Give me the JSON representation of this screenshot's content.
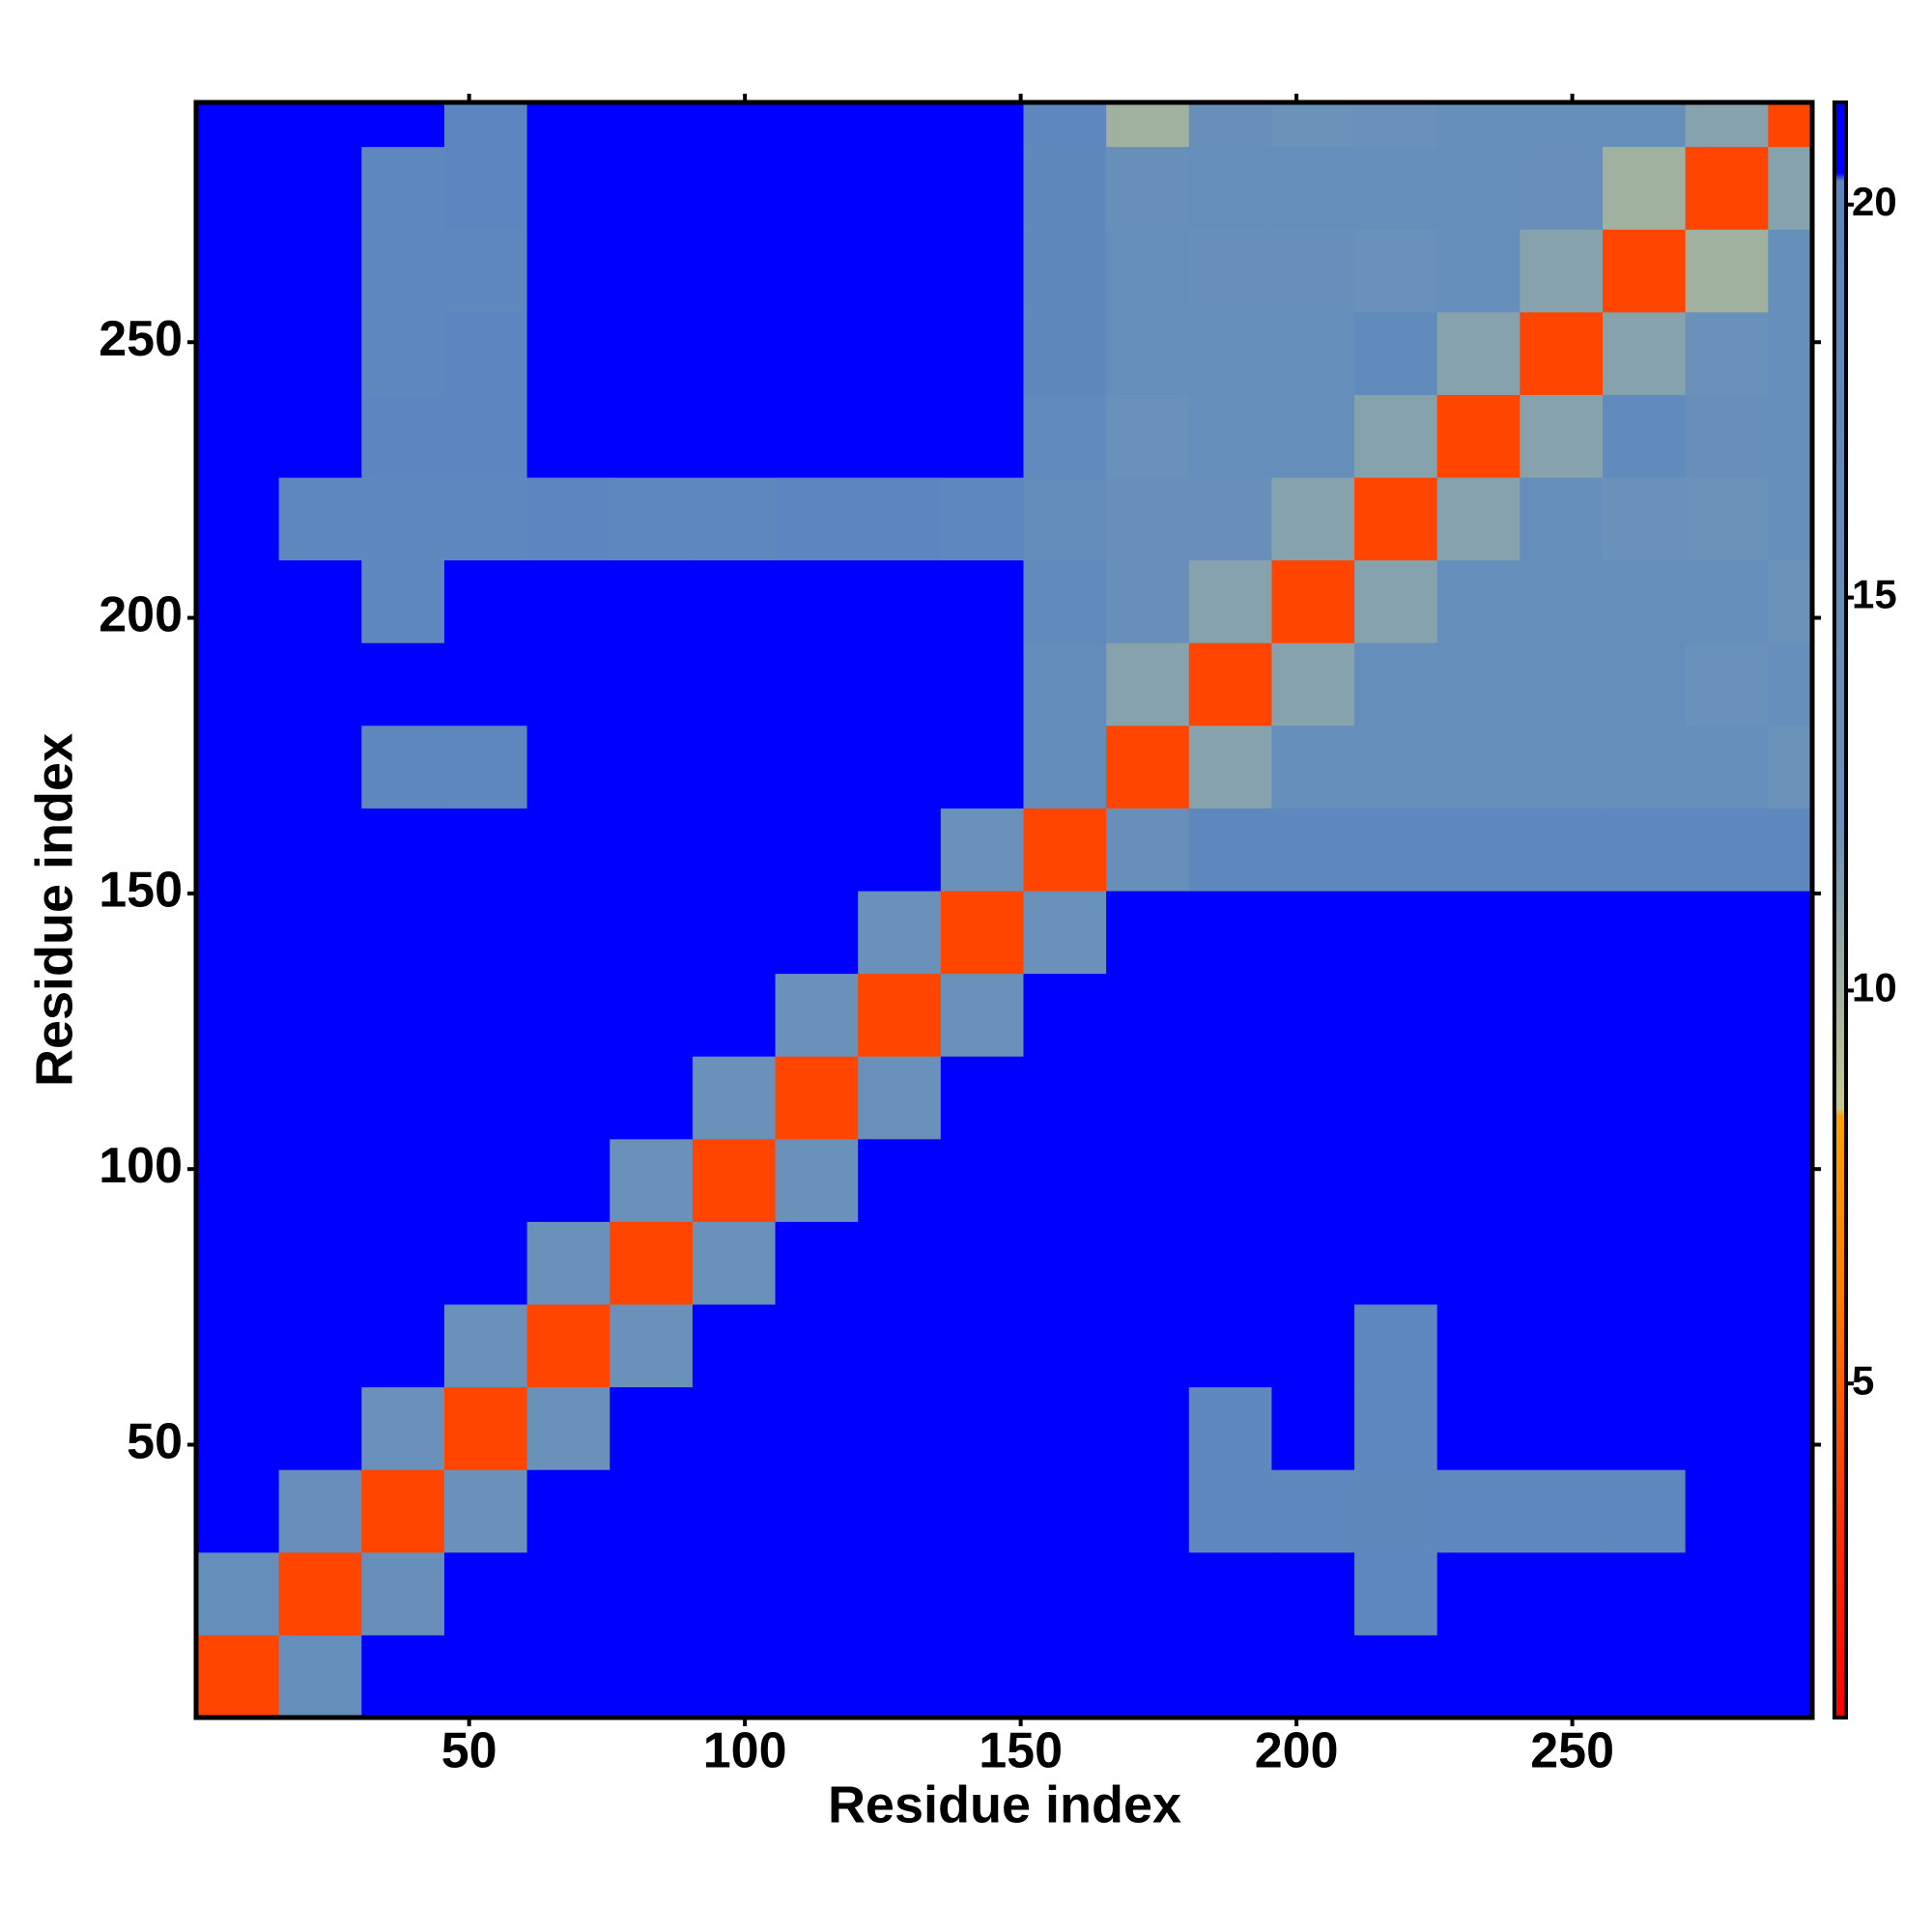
{
  "chart_data": {
    "type": "heatmap",
    "xlabel": "Residue index",
    "ylabel": "Residue index",
    "xlim": [
      0.5,
      293.5
    ],
    "ylim": [
      0.5,
      293.5
    ],
    "xticks": [
      50,
      100,
      150,
      200,
      250
    ],
    "yticks": [
      50,
      100,
      150,
      200,
      250
    ],
    "x_bins": [
      0.5,
      15.5,
      30.5,
      45.5,
      60.5,
      75.5,
      90.5,
      105.5,
      120.5,
      135.5,
      150.5,
      165.5,
      180.5,
      195.5,
      210.5,
      225.5,
      240.5,
      255.5,
      270.5,
      285.5,
      293.5
    ],
    "y_bins": [
      0.5,
      15.5,
      30.5,
      45.5,
      60.5,
      75.5,
      90.5,
      105.5,
      120.5,
      135.5,
      150.5,
      165.5,
      180.5,
      195.5,
      210.5,
      225.5,
      240.5,
      255.5,
      270.5,
      285.5,
      293.5
    ],
    "values": [
      [
        4,
        15,
        21,
        21,
        21,
        21,
        21,
        21,
        21,
        21,
        21,
        21,
        21,
        21,
        21,
        21,
        21,
        21,
        21,
        21
      ],
      [
        15,
        4,
        14,
        21,
        21,
        21,
        21,
        21,
        21,
        21,
        21,
        21,
        21,
        21,
        19,
        21,
        21,
        21,
        21,
        21
      ],
      [
        21,
        14,
        4,
        13,
        21,
        21,
        21,
        21,
        21,
        21,
        21,
        21,
        19,
        19,
        18,
        19,
        19,
        19,
        21,
        21
      ],
      [
        21,
        21,
        13,
        4,
        13,
        21,
        21,
        21,
        21,
        21,
        21,
        21,
        19,
        21,
        19,
        21,
        21,
        21,
        21,
        21
      ],
      [
        21,
        21,
        21,
        13,
        4,
        13,
        21,
        21,
        21,
        21,
        21,
        21,
        21,
        21,
        19,
        21,
        21,
        21,
        21,
        21
      ],
      [
        21,
        21,
        21,
        21,
        13,
        4,
        13,
        21,
        21,
        21,
        21,
        21,
        21,
        21,
        21,
        21,
        21,
        21,
        21,
        21
      ],
      [
        21,
        21,
        21,
        21,
        21,
        13,
        4,
        13,
        21,
        21,
        21,
        21,
        21,
        21,
        21,
        21,
        21,
        21,
        21,
        21
      ],
      [
        21,
        21,
        21,
        21,
        21,
        21,
        13,
        4,
        13,
        21,
        21,
        21,
        21,
        21,
        21,
        21,
        21,
        21,
        21,
        21
      ],
      [
        21,
        21,
        21,
        21,
        21,
        21,
        21,
        13,
        4,
        13,
        21,
        21,
        21,
        21,
        21,
        21,
        21,
        21,
        21,
        21
      ],
      [
        21,
        21,
        21,
        21,
        21,
        21,
        21,
        21,
        13,
        4,
        13,
        21,
        21,
        21,
        21,
        21,
        21,
        21,
        21,
        21
      ],
      [
        21,
        21,
        21,
        21,
        21,
        21,
        21,
        21,
        21,
        13,
        4,
        14,
        19,
        19,
        19,
        19,
        19,
        19,
        19,
        19
      ],
      [
        21,
        21,
        19,
        19,
        21,
        21,
        21,
        21,
        21,
        21,
        16,
        4,
        11,
        15,
        15,
        15,
        15,
        15,
        15,
        12
      ],
      [
        21,
        21,
        21,
        21,
        21,
        21,
        21,
        21,
        21,
        21,
        16,
        11,
        4,
        11,
        15,
        15,
        15,
        15,
        13,
        15
      ],
      [
        21,
        21,
        19,
        21,
        21,
        21,
        21,
        21,
        21,
        21,
        17,
        14,
        11,
        4,
        11,
        15,
        15,
        15,
        15,
        12
      ],
      [
        21,
        19,
        19,
        19,
        20,
        19,
        19,
        20,
        20,
        19,
        16,
        14,
        14,
        11,
        4,
        11,
        15,
        13,
        12,
        15
      ],
      [
        21,
        21,
        20,
        20,
        21,
        21,
        21,
        21,
        21,
        21,
        17,
        13,
        15,
        15,
        11,
        4,
        11,
        17,
        14,
        15
      ],
      [
        21,
        21,
        19,
        20,
        21,
        21,
        21,
        21,
        21,
        21,
        18,
        15,
        15,
        15,
        17,
        11,
        4,
        11,
        13,
        15
      ],
      [
        21,
        21,
        19,
        19,
        21,
        21,
        21,
        21,
        21,
        21,
        18,
        15,
        14,
        14,
        13,
        15,
        11,
        4,
        10,
        15
      ],
      [
        21,
        21,
        19,
        20,
        21,
        21,
        21,
        21,
        21,
        21,
        18,
        14,
        15,
        15,
        15,
        15,
        14,
        10,
        4,
        11
      ],
      [
        21,
        21,
        21,
        20,
        21,
        21,
        21,
        21,
        21,
        21,
        19,
        10,
        14,
        12,
        13,
        15,
        15,
        15,
        11,
        4
      ]
    ],
    "colorscale": [
      [
        0.75,
        "#ff0000"
      ],
      [
        3,
        "#ff2a00"
      ],
      [
        6,
        "#ff7a00"
      ],
      [
        8.4,
        "#ffa200"
      ],
      [
        8.5,
        "#c9c98e"
      ],
      [
        12,
        "#6b92b8"
      ],
      [
        20.3,
        "#5b86bf"
      ],
      [
        20.4,
        "#0000ff"
      ],
      [
        21.3,
        "#0000ff"
      ]
    ],
    "clim": [
      0.75,
      21.3
    ],
    "cticks": [
      5,
      10,
      15,
      20
    ]
  }
}
